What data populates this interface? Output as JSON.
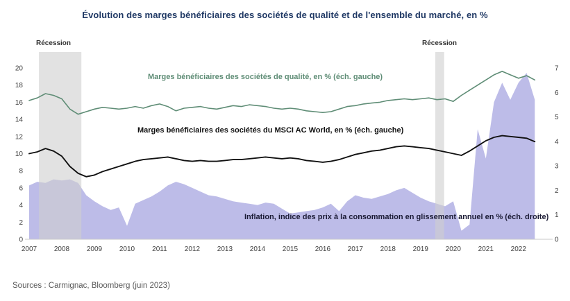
{
  "page": {
    "title": "Évolution des marges bénéficiaires des sociétés de qualité et de l'ensemble du marché, en %",
    "source": "Sources : Carmignac, Bloomberg (juin 2023)"
  },
  "chart_data": {
    "type": "line",
    "title": "Évolution des marges bénéficiaires des sociétés de qualité et de l'ensemble du marché, en %",
    "x_range": [
      2007,
      2022.92
    ],
    "x_ticks": [
      2007,
      2008,
      2009,
      2010,
      2011,
      2012,
      2013,
      2014,
      2015,
      2016,
      2017,
      2018,
      2019,
      2020,
      2021,
      2022
    ],
    "left_axis": {
      "min": 0,
      "max": 20,
      "ticks": [
        0,
        2,
        4,
        6,
        8,
        10,
        12,
        14,
        16,
        18,
        20
      ]
    },
    "right_axis": {
      "min": 0,
      "max": 7,
      "ticks": [
        0,
        1,
        2,
        3,
        4,
        5,
        6,
        7
      ]
    },
    "grid": false,
    "legend_position": "in-plot-labels",
    "recessions": [
      {
        "label": "Récession",
        "x_from": 2007.3,
        "x_to": 2008.6
      },
      {
        "label": "Récession",
        "x_from": 2019.45,
        "x_to": 2019.72
      }
    ],
    "colors": {
      "recession_band": "#cfcfcf",
      "title_text": "#1f3864",
      "source_text": "#595959"
    },
    "x": [
      2007,
      2007.25,
      2007.5,
      2007.75,
      2008,
      2008.25,
      2008.5,
      2008.75,
      2009,
      2009.25,
      2009.5,
      2009.75,
      2010,
      2010.25,
      2010.5,
      2010.75,
      2011,
      2011.25,
      2011.5,
      2011.75,
      2012,
      2012.25,
      2012.5,
      2012.75,
      2013,
      2013.25,
      2013.5,
      2013.75,
      2014,
      2014.25,
      2014.5,
      2014.75,
      2015,
      2015.25,
      2015.5,
      2015.75,
      2016,
      2016.25,
      2016.5,
      2016.75,
      2017,
      2017.25,
      2017.5,
      2017.75,
      2018,
      2018.25,
      2018.5,
      2018.75,
      2019,
      2019.25,
      2019.5,
      2019.75,
      2020,
      2020.25,
      2020.5,
      2020.75,
      2021,
      2021.25,
      2021.5,
      2021.75,
      2022,
      2022.25,
      2022.5
    ],
    "series": [
      {
        "name": "marges-qualite",
        "label": "Marges bénéficiaires des sociétés de qualité, en % (éch. gauche)",
        "axis": "left",
        "style": "line",
        "color": "#5f8d76",
        "stroke_width": 1.6,
        "values": [
          16.2,
          16.5,
          17.0,
          16.8,
          16.4,
          15.2,
          14.6,
          14.9,
          15.2,
          15.4,
          15.3,
          15.2,
          15.3,
          15.5,
          15.3,
          15.6,
          15.8,
          15.5,
          15.0,
          15.3,
          15.4,
          15.5,
          15.3,
          15.2,
          15.4,
          15.6,
          15.5,
          15.7,
          15.6,
          15.5,
          15.3,
          15.2,
          15.3,
          15.2,
          15.0,
          14.9,
          14.8,
          14.9,
          15.2,
          15.5,
          15.6,
          15.8,
          15.9,
          16.0,
          16.2,
          16.3,
          16.4,
          16.3,
          16.4,
          16.5,
          16.3,
          16.4,
          16.1,
          16.8,
          17.4,
          18.0,
          18.6,
          19.2,
          19.6,
          19.2,
          18.8,
          19.1,
          18.6
        ]
      },
      {
        "name": "marges-msci-ac-world",
        "label": "Marges bénéficiaires des sociétés du MSCI AC World, en % (éch. gauche)",
        "axis": "left",
        "style": "line",
        "color": "#111111",
        "stroke_width": 1.9,
        "values": [
          10.0,
          10.2,
          10.6,
          10.3,
          9.7,
          8.5,
          7.7,
          7.3,
          7.5,
          7.9,
          8.2,
          8.5,
          8.8,
          9.1,
          9.3,
          9.4,
          9.5,
          9.6,
          9.4,
          9.2,
          9.1,
          9.2,
          9.1,
          9.1,
          9.2,
          9.3,
          9.3,
          9.4,
          9.5,
          9.6,
          9.5,
          9.4,
          9.5,
          9.4,
          9.2,
          9.1,
          9.0,
          9.1,
          9.3,
          9.6,
          9.9,
          10.1,
          10.3,
          10.4,
          10.6,
          10.8,
          10.9,
          10.8,
          10.7,
          10.6,
          10.4,
          10.2,
          10.0,
          9.8,
          10.3,
          10.9,
          11.5,
          11.9,
          12.1,
          12.0,
          11.9,
          11.8,
          11.4
        ]
      },
      {
        "name": "inflation",
        "label": "Inflation, indice des prix à la consommation en glissement annuel en % (éch. droite)",
        "axis": "right",
        "style": "area",
        "color": "#bdbce8",
        "stroke_width": 0,
        "values": [
          2.2,
          2.35,
          2.3,
          2.45,
          2.4,
          2.45,
          2.3,
          1.8,
          1.55,
          1.35,
          1.2,
          1.3,
          0.55,
          1.45,
          1.6,
          1.75,
          1.95,
          2.2,
          2.35,
          2.25,
          2.1,
          1.95,
          1.8,
          1.75,
          1.65,
          1.55,
          1.5,
          1.45,
          1.4,
          1.5,
          1.45,
          1.25,
          1.05,
          1.1,
          1.15,
          1.2,
          1.3,
          1.45,
          1.15,
          1.55,
          1.8,
          1.7,
          1.65,
          1.75,
          1.85,
          2.0,
          2.1,
          1.9,
          1.7,
          1.55,
          1.45,
          1.35,
          1.55,
          0.35,
          0.6,
          4.5,
          3.3,
          5.6,
          6.4,
          5.7,
          6.4,
          6.8,
          5.7
        ]
      }
    ]
  }
}
